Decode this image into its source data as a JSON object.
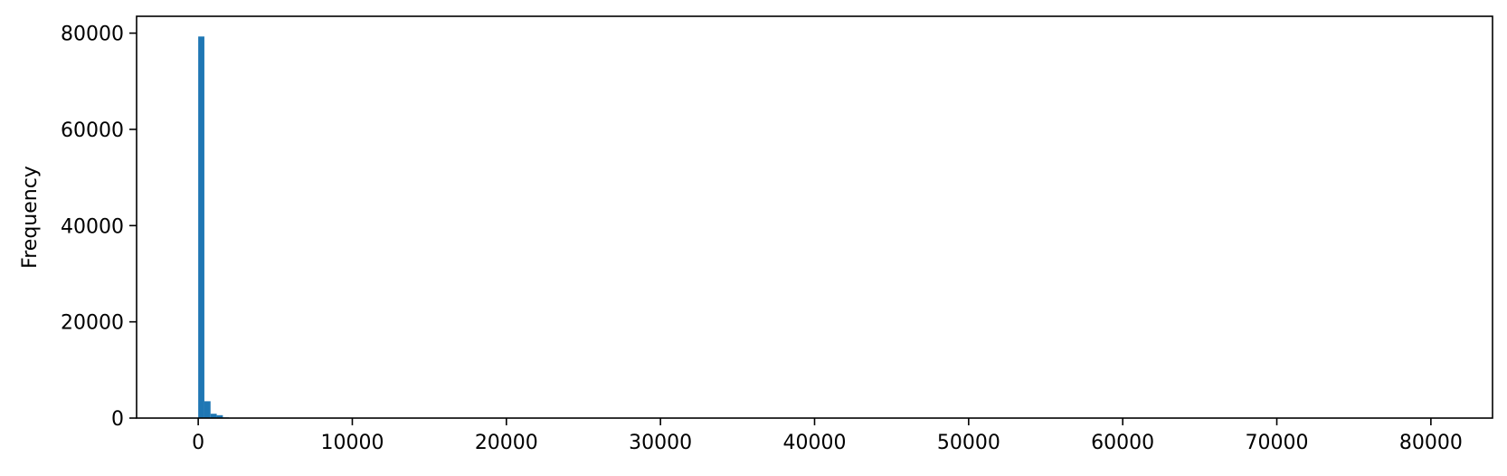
{
  "chart_data": {
    "type": "bar",
    "subtype": "histogram",
    "title": "",
    "xlabel": "",
    "ylabel": "Frequency",
    "xlim": [
      -4000,
      84000
    ],
    "ylim": [
      0,
      83500
    ],
    "grid": false,
    "legend": "none",
    "bar_color": "#1f77b4",
    "bin_width": 400,
    "bins": [
      {
        "x0": 0,
        "x1": 400,
        "count": 79300
      },
      {
        "x0": 400,
        "x1": 800,
        "count": 3500
      },
      {
        "x0": 800,
        "x1": 1200,
        "count": 900
      },
      {
        "x0": 1200,
        "x1": 1600,
        "count": 600
      },
      {
        "x0": 1600,
        "x1": 2000,
        "count": 150
      },
      {
        "x0": 2000,
        "x1": 2400,
        "count": 80
      }
    ],
    "x_ticks": [
      0,
      10000,
      20000,
      30000,
      40000,
      50000,
      60000,
      70000,
      80000
    ],
    "x_tick_labels": [
      "0",
      "10000",
      "20000",
      "30000",
      "40000",
      "50000",
      "60000",
      "70000",
      "80000"
    ],
    "y_ticks": [
      0,
      20000,
      40000,
      60000,
      80000
    ],
    "y_tick_labels": [
      "0",
      "20000",
      "40000",
      "60000",
      "80000"
    ]
  }
}
